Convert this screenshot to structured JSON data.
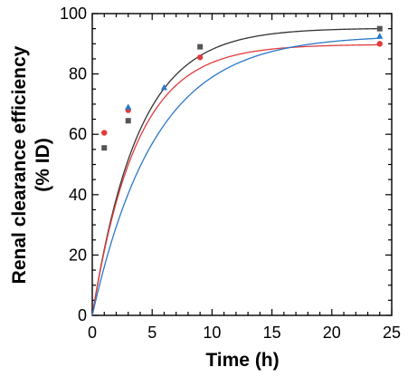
{
  "chart_data": {
    "type": "scatter",
    "xlabel": "Time (h)",
    "ylabel_line1": "Renal clearance efficiency",
    "ylabel_line2": "(% ID)",
    "xlim": [
      0,
      25
    ],
    "ylim": [
      0,
      100
    ],
    "xticks": [
      0,
      5,
      10,
      15,
      20,
      25
    ],
    "yticks": [
      0,
      20,
      40,
      60,
      80,
      100
    ],
    "grid": false,
    "series": [
      {
        "marker": "square",
        "color": "#555555",
        "curve_color": "#333333",
        "points": [
          [
            1,
            55.5
          ],
          [
            3,
            64.5
          ],
          [
            9,
            89
          ],
          [
            24,
            95
          ]
        ],
        "fit": {
          "plateau": 95.2,
          "k": 0.26
        }
      },
      {
        "marker": "circle",
        "color": "#e03c3c",
        "curve_color": "#e03c3c",
        "points": [
          [
            1,
            60.5
          ],
          [
            3,
            68
          ],
          [
            9,
            85.5
          ],
          [
            24,
            90
          ]
        ],
        "fit": {
          "plateau": 89.8,
          "k": 0.27
        }
      },
      {
        "marker": "triangle",
        "color": "#2a78c8",
        "curve_color": "#2a78c8",
        "points": [
          [
            3,
            69
          ],
          [
            6,
            75.5
          ],
          [
            24,
            92.5
          ]
        ],
        "fit": {
          "plateau": 92.8,
          "k": 0.19
        }
      }
    ]
  }
}
